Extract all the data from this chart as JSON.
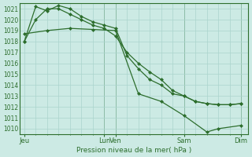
{
  "background_color": "#cceae4",
  "grid_color": "#aad4cc",
  "line_color": "#2d6e2d",
  "title": "Pression niveau de la mer( hPa )",
  "ylim": [
    1009.5,
    1021.5
  ],
  "yticks": [
    1010,
    1011,
    1012,
    1013,
    1014,
    1015,
    1016,
    1017,
    1018,
    1019,
    1020,
    1021
  ],
  "xtick_labels": [
    "Jeu",
    "Lun",
    "Ven",
    "Sam",
    "Dim"
  ],
  "xtick_positions": [
    0,
    84,
    96,
    168,
    228
  ],
  "xlim": [
    -5,
    235
  ],
  "series": [
    {
      "x": [
        0,
        12,
        24,
        36,
        48,
        60,
        72,
        84,
        96,
        108,
        120,
        132,
        144,
        156,
        168,
        180,
        192,
        204,
        216,
        228
      ],
      "y": [
        1018.0,
        1020.0,
        1021.0,
        1021.0,
        1020.5,
        1020.0,
        1019.5,
        1019.2,
        1018.5,
        1017.0,
        1016.0,
        1015.2,
        1014.5,
        1013.5,
        1013.0,
        1012.5,
        1012.3,
        1012.2,
        1012.2,
        1012.3
      ],
      "marker": "D",
      "ms": 2.5,
      "lw": 0.9
    },
    {
      "x": [
        0,
        12,
        24,
        36,
        48,
        60,
        72,
        84,
        96,
        108,
        120,
        132,
        144,
        156,
        168,
        180,
        192,
        204,
        216,
        228
      ],
      "y": [
        1018.0,
        1021.2,
        1020.8,
        1021.3,
        1021.0,
        1020.3,
        1019.8,
        1019.5,
        1019.2,
        1016.7,
        1015.5,
        1014.5,
        1014.0,
        1013.2,
        1013.0,
        1012.5,
        1012.3,
        1012.2,
        1012.2,
        1012.3
      ],
      "marker": "D",
      "ms": 2.5,
      "lw": 0.9
    },
    {
      "x": [
        0,
        24,
        48,
        72,
        96,
        120,
        144,
        168,
        192,
        204,
        228
      ],
      "y": [
        1018.7,
        1019.0,
        1019.2,
        1019.1,
        1019.0,
        1013.2,
        1012.5,
        1011.2,
        1009.7,
        1010.0,
        1010.3
      ],
      "marker": "D",
      "ms": 2.5,
      "lw": 0.9
    }
  ],
  "vline_positions": [
    84,
    96,
    168,
    228
  ],
  "figsize": [
    3.2,
    2.0
  ],
  "dpi": 100
}
